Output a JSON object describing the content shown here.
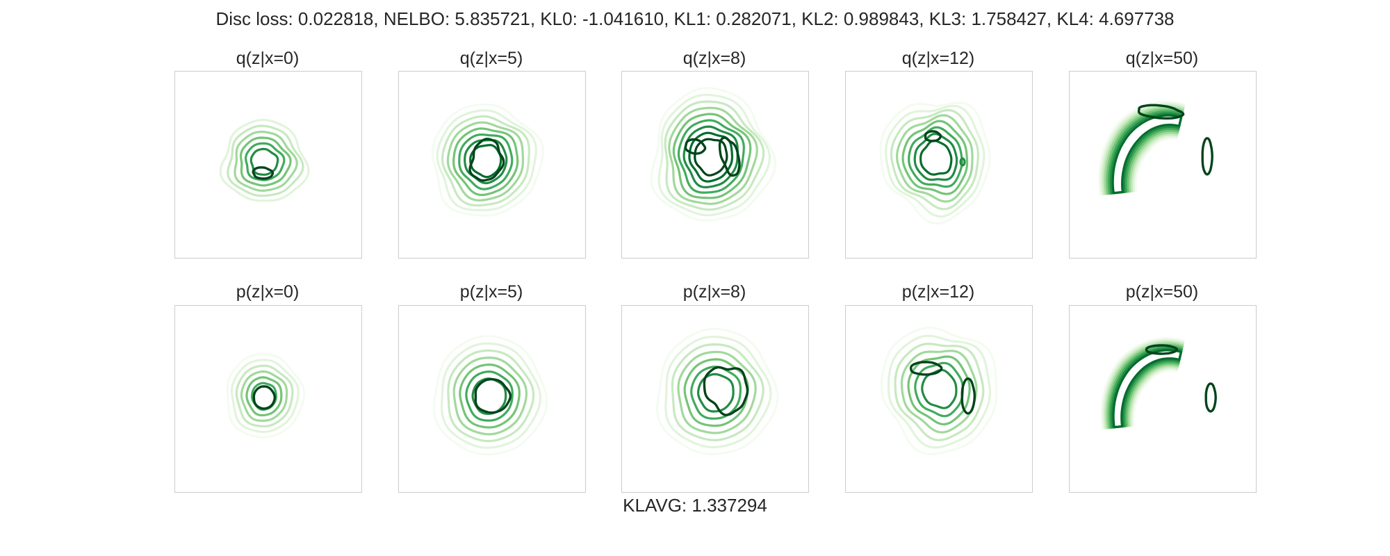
{
  "suptitle": "Disc loss: 0.022818, NELBO: 5.835721, KL0: -1.041610, KL1: 0.282071, KL2: 0.989843, KL3: 1.758427, KL4: 4.697738",
  "footer": "KLAVG: 1.337294",
  "colors": {
    "frame": "#cccccc",
    "contour_light": "#e5f5e0",
    "contour_dark": "#00441b"
  },
  "chart_data": [
    {
      "type": "contour",
      "title": "q(z|x=0)",
      "row": "q",
      "x_value": 0,
      "colormap": "Greens",
      "grid": false,
      "axes_ticks": false
    },
    {
      "type": "contour",
      "title": "q(z|x=5)",
      "row": "q",
      "x_value": 5,
      "colormap": "Greens",
      "grid": false,
      "axes_ticks": false
    },
    {
      "type": "contour",
      "title": "q(z|x=8)",
      "row": "q",
      "x_value": 8,
      "colormap": "Greens",
      "grid": false,
      "axes_ticks": false
    },
    {
      "type": "contour",
      "title": "q(z|x=12)",
      "row": "q",
      "x_value": 12,
      "colormap": "Greens",
      "grid": false,
      "axes_ticks": false
    },
    {
      "type": "contour",
      "title": "q(z|x=50)",
      "row": "q",
      "x_value": 50,
      "colormap": "Greens",
      "grid": false,
      "axes_ticks": false
    },
    {
      "type": "contour",
      "title": "p(z|x=0)",
      "row": "p",
      "x_value": 0,
      "colormap": "Greens",
      "grid": false,
      "axes_ticks": false
    },
    {
      "type": "contour",
      "title": "p(z|x=5)",
      "row": "p",
      "x_value": 5,
      "colormap": "Greens",
      "grid": false,
      "axes_ticks": false
    },
    {
      "type": "contour",
      "title": "p(z|x=8)",
      "row": "p",
      "x_value": 8,
      "colormap": "Greens",
      "grid": false,
      "axes_ticks": false
    },
    {
      "type": "contour",
      "title": "p(z|x=12)",
      "row": "p",
      "x_value": 12,
      "colormap": "Greens",
      "grid": false,
      "axes_ticks": false
    },
    {
      "type": "contour",
      "title": "p(z|x=50)",
      "row": "p",
      "x_value": 50,
      "colormap": "Greens",
      "grid": false,
      "axes_ticks": false
    }
  ]
}
